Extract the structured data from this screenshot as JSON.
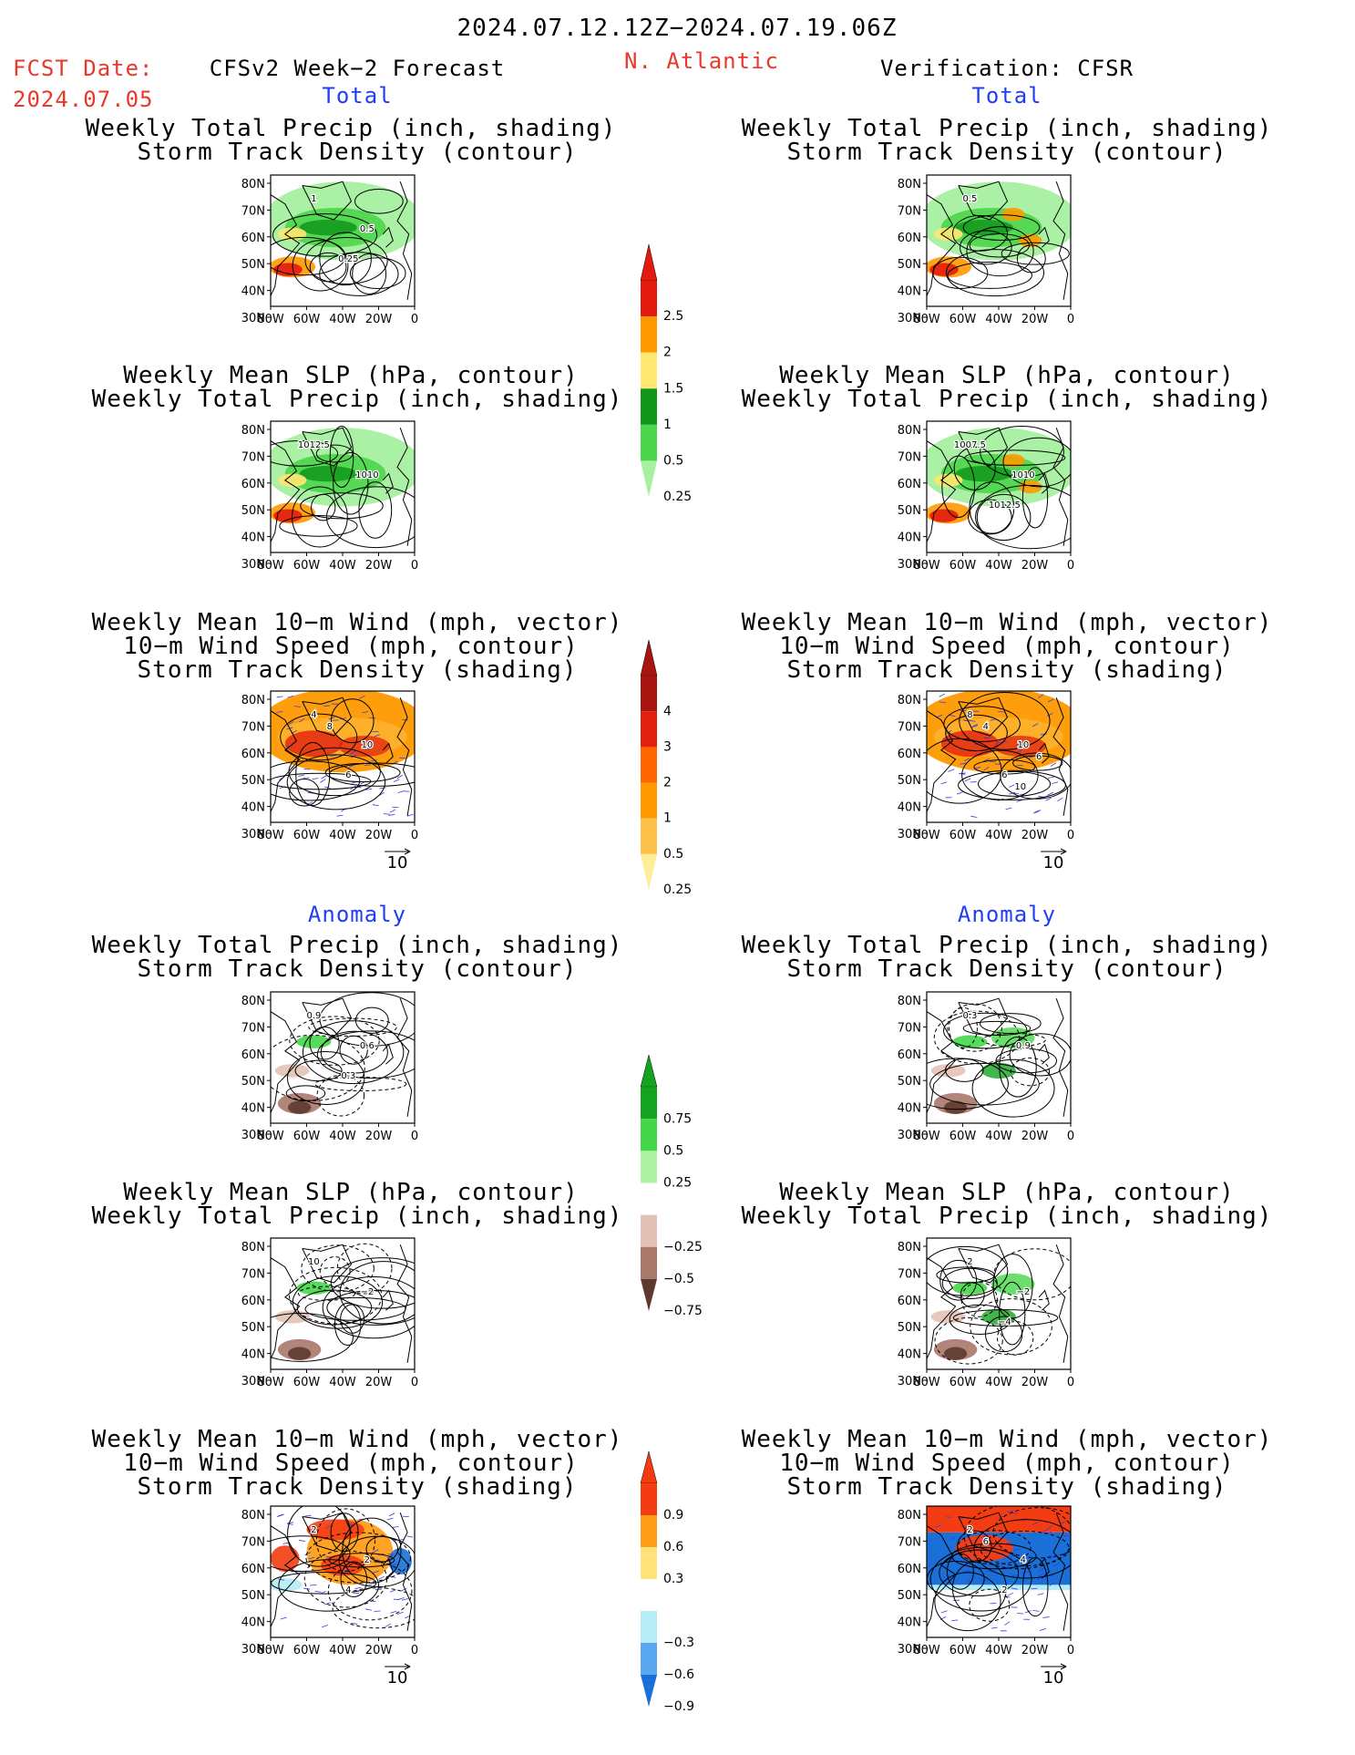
{
  "header": {
    "date_range": "2024.07.12.12Z−2024.07.19.06Z",
    "fcst_date_label": "FCST Date:",
    "fcst_date_value": "2024.07.05",
    "left_title": "CFSv2 Week−2 Forecast",
    "region": "N. Atlantic",
    "right_title": "Verification: CFSR"
  },
  "sections": {
    "total": "Total",
    "anomaly": "Anomaly"
  },
  "panel_titles": {
    "precip_storm": [
      "Weekly Total Precip (inch, shading)",
      "Storm Track Density (contour)"
    ],
    "slp_precip": [
      "Weekly Mean SLP (hPa, contour)",
      "Weekly Total Precip (inch, shading)"
    ],
    "wind_storm": [
      "Weekly Mean 10−m Wind (mph, vector)",
      "10−m Wind Speed (mph, contour)",
      "Storm Track Density (shading)"
    ]
  },
  "axes": {
    "lat_ticks": [
      "80N",
      "70N",
      "60N",
      "50N",
      "40N",
      "30N"
    ],
    "lon_ticks": [
      "80W",
      "60W",
      "40W",
      "20W",
      "0"
    ]
  },
  "vector_ref": "10",
  "colorbars": [
    {
      "name": "precip-total",
      "labels": [
        "2.5",
        "2",
        "1.5",
        "1",
        "0.5",
        "0.25"
      ],
      "colors": [
        "#e21b0e",
        "#ff9900",
        "#ffe770",
        "#11951a",
        "#4bd64b",
        "#a6f0a0"
      ]
    },
    {
      "name": "storm-total",
      "labels": [
        "4",
        "3",
        "2",
        "1",
        "0.5",
        "0.25"
      ],
      "colors": [
        "#a8140f",
        "#e2200f",
        "#ff6600",
        "#ff9900",
        "#fdc24a",
        "#ffee99"
      ]
    },
    {
      "name": "precip-anom",
      "labels": [
        "0.75",
        "0.5",
        "0.25",
        "−0.25",
        "−0.5",
        "−0.75"
      ],
      "colors": [
        "#13a31e",
        "#46d64a",
        "#aef2a6",
        "#ffffff",
        "#e3c2b5",
        "#a8786a",
        "#5e3a2e"
      ]
    },
    {
      "name": "storm-anom",
      "labels": [
        "0.9",
        "0.6",
        "0.3",
        "−0.3",
        "−0.6",
        "−0.9"
      ],
      "colors": [
        "#f43c13",
        "#ff9e19",
        "#ffe27a",
        "#ffffff",
        "#b5ecf5",
        "#5aa8ef",
        "#1a6fd8"
      ]
    }
  ],
  "map_labels": {
    "fc_precip_total": [
      "1",
      "0.5",
      "0.25"
    ],
    "ob_precip_total": [
      "0.5"
    ],
    "fc_slp_total": [
      "1012.5",
      "1010"
    ],
    "ob_slp_total": [
      "1007.5",
      "1010",
      "1012.5"
    ],
    "fc_wind_total": [
      "4",
      "10",
      "6",
      "8"
    ],
    "ob_wind_total": [
      "8",
      "10",
      "6",
      "4",
      "6",
      "10"
    ],
    "fc_precip_anom": [
      "0.9",
      "0.6",
      "0.3"
    ],
    "ob_precip_anom": [
      "0.3",
      "0.9"
    ],
    "fc_slp_anom": [
      "10",
      "−2"
    ],
    "ob_slp_anom": [
      "2",
      "−2",
      "−4"
    ],
    "fc_wind_anom": [
      "2",
      "2",
      "4"
    ],
    "ob_wind_anom": [
      "2",
      "4",
      "2",
      "6"
    ]
  }
}
